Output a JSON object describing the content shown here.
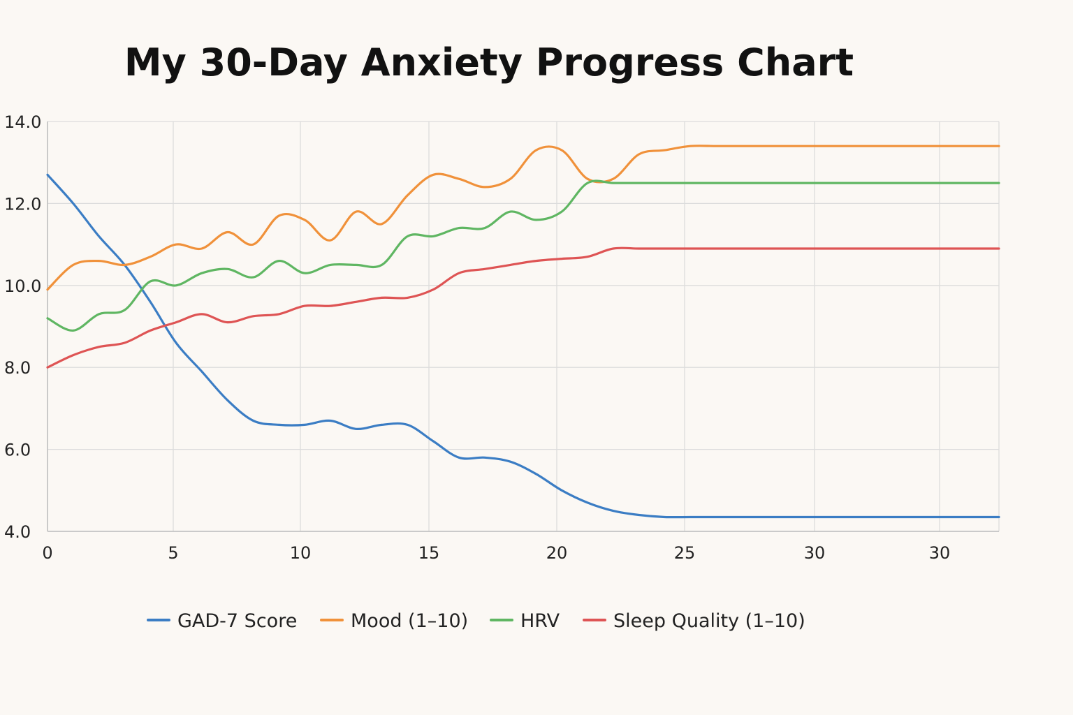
{
  "chart_data": {
    "type": "line",
    "title": "My 30-Day Anxiety Progress Chart",
    "xlabel": "",
    "ylabel": "",
    "x_ticks": [
      "0",
      "5",
      "10",
      "15",
      "20",
      "25",
      "30",
      "30"
    ],
    "y_ticks": [
      "4.0",
      "6.0",
      "8.0",
      "10.0",
      "12.0",
      "14.0"
    ],
    "ylim": [
      4,
      14
    ],
    "xlim": [
      0,
      37
    ],
    "grid": true,
    "legend_position": "bottom",
    "series": [
      {
        "name": "GAD-7 Score",
        "color": "#3b7dc4",
        "x": [
          0,
          1,
          2,
          3,
          4,
          5,
          6,
          7,
          8,
          9,
          10,
          11,
          12,
          13,
          14,
          15,
          16,
          17,
          18,
          19,
          20,
          21,
          22,
          23,
          24,
          25,
          26,
          27,
          28,
          29,
          30,
          31,
          32,
          33,
          34,
          35,
          36,
          37
        ],
        "values": [
          12.7,
          12.0,
          11.2,
          10.5,
          9.6,
          8.6,
          7.9,
          7.2,
          6.7,
          6.6,
          6.6,
          6.7,
          6.5,
          6.6,
          6.6,
          6.2,
          5.8,
          5.8,
          5.7,
          5.4,
          5.0,
          4.7,
          4.5,
          4.4,
          4.35,
          4.35,
          4.35,
          4.35,
          4.35,
          4.35,
          4.35,
          4.35,
          4.35,
          4.35,
          4.35,
          4.35,
          4.35,
          4.35
        ]
      },
      {
        "name": "Mood (1–10)",
        "color": "#f0913a",
        "x": [
          0,
          1,
          2,
          3,
          4,
          5,
          6,
          7,
          8,
          9,
          10,
          11,
          12,
          13,
          14,
          15,
          16,
          17,
          18,
          19,
          20,
          21,
          22,
          23,
          24,
          25,
          26,
          27,
          28,
          29,
          30,
          31,
          32,
          33,
          34,
          35,
          36,
          37
        ],
        "values": [
          9.9,
          10.5,
          10.6,
          10.5,
          10.7,
          11.0,
          10.9,
          11.3,
          11.0,
          11.7,
          11.6,
          11.1,
          11.8,
          11.5,
          12.2,
          12.7,
          12.6,
          12.4,
          12.6,
          13.3,
          13.3,
          12.6,
          12.6,
          13.2,
          13.3,
          13.4,
          13.4,
          13.4,
          13.4,
          13.4,
          13.4,
          13.4,
          13.4,
          13.4,
          13.4,
          13.4,
          13.4,
          13.4
        ]
      },
      {
        "name": "HRV",
        "color": "#5fb662",
        "x": [
          0,
          1,
          2,
          3,
          4,
          5,
          6,
          7,
          8,
          9,
          10,
          11,
          12,
          13,
          14,
          15,
          16,
          17,
          18,
          19,
          20,
          21,
          22,
          23,
          24,
          25,
          26,
          27,
          28,
          29,
          30,
          31,
          32,
          33,
          34,
          35,
          36,
          37
        ],
        "values": [
          9.2,
          8.9,
          9.3,
          9.4,
          10.1,
          10.0,
          10.3,
          10.4,
          10.2,
          10.6,
          10.3,
          10.5,
          10.5,
          10.5,
          11.2,
          11.2,
          11.4,
          11.4,
          11.8,
          11.6,
          11.8,
          12.5,
          12.5,
          12.5,
          12.5,
          12.5,
          12.5,
          12.5,
          12.5,
          12.5,
          12.5,
          12.5,
          12.5,
          12.5,
          12.5,
          12.5,
          12.5,
          12.5
        ]
      },
      {
        "name": "Sleep Quality (1–10)",
        "color": "#de5454",
        "x": [
          0,
          1,
          2,
          3,
          4,
          5,
          6,
          7,
          8,
          9,
          10,
          11,
          12,
          13,
          14,
          15,
          16,
          17,
          18,
          19,
          20,
          21,
          22,
          23,
          24,
          25,
          26,
          27,
          28,
          29,
          30,
          31,
          32,
          33,
          34,
          35,
          36,
          37
        ],
        "values": [
          8.0,
          8.3,
          8.5,
          8.6,
          8.9,
          9.1,
          9.3,
          9.1,
          9.25,
          9.3,
          9.5,
          9.5,
          9.6,
          9.7,
          9.7,
          9.9,
          10.3,
          10.4,
          10.5,
          10.6,
          10.65,
          10.7,
          10.9,
          10.9,
          10.9,
          10.9,
          10.9,
          10.9,
          10.9,
          10.9,
          10.9,
          10.9,
          10.9,
          10.9,
          10.9,
          10.9,
          10.9,
          10.9
        ]
      }
    ]
  }
}
